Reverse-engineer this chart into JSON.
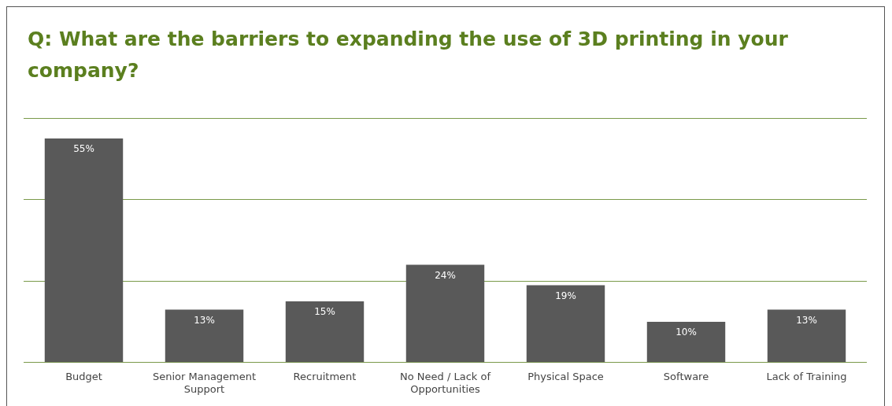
{
  "chart_data": {
    "type": "bar",
    "title": "Q: What are the barriers to expanding the use of 3D printing in your company?",
    "categories": [
      "Budget",
      "Senior Management Support",
      "Recruitment",
      "No Need / Lack of Opportunities",
      "Physical Space",
      "Software",
      "Lack of Training"
    ],
    "values": [
      55,
      13,
      15,
      24,
      19,
      10,
      13
    ],
    "value_labels": [
      "55%",
      "13%",
      "15%",
      "24%",
      "19%",
      "10%",
      "13%"
    ],
    "color": "#595959",
    "ylim": [
      0,
      60
    ],
    "yticks": [
      {
        "value": 0,
        "label": null
      },
      {
        "value": 20,
        "label": null
      },
      {
        "value": 40,
        "label": null
      },
      {
        "value": 60,
        "label": null
      }
    ],
    "tick_labels": "x",
    "grid": "y",
    "legend": false
  }
}
